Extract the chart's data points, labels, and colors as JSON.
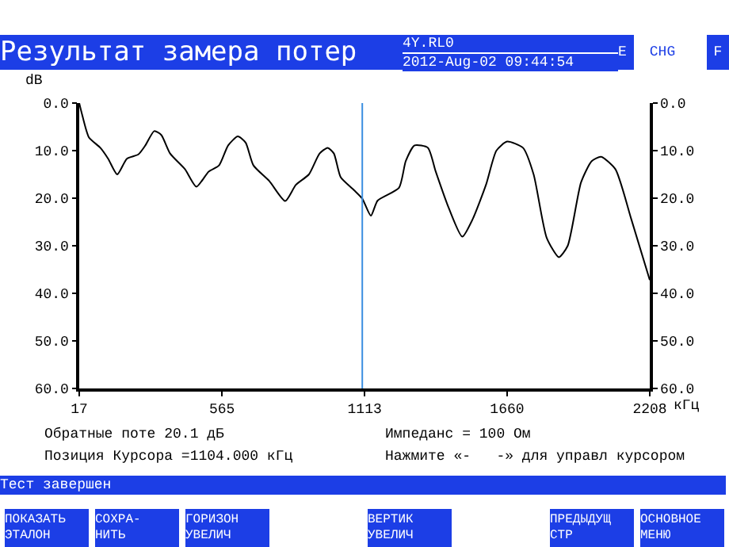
{
  "chart_data": {
    "type": "line",
    "title": "Результат замера потер",
    "xlabel": "кГц",
    "ylabel": "dB",
    "x": [
      17,
      27,
      54,
      98,
      128,
      163,
      200,
      244,
      271,
      305,
      332,
      366,
      423,
      467,
      514,
      554,
      589,
      626,
      656,
      686,
      747,
      808,
      849,
      899,
      940,
      971,
      995,
      1021,
      1072,
      1104,
      1137,
      1163,
      1245,
      1271,
      1305,
      1356,
      1386,
      1437,
      1488,
      1528,
      1579,
      1619,
      1660,
      1721,
      1762,
      1812,
      1859,
      1893,
      1944,
      1985,
      2021,
      2076,
      2137,
      2208
    ],
    "series": [
      {
        "color": "#000000",
        "values": [
          0,
          2.2,
          7.2,
          9.4,
          11.7,
          15,
          11.7,
          10.8,
          8.9,
          5.9,
          6.7,
          10.6,
          13.9,
          17.6,
          14.4,
          13.1,
          8.9,
          7,
          8.3,
          13.1,
          16.4,
          20.6,
          17.2,
          15,
          10.6,
          9.4,
          10.6,
          15.6,
          18.3,
          20.1,
          23.7,
          20.5,
          17.8,
          12.2,
          8.9,
          9.4,
          14.4,
          22.2,
          28.1,
          24.4,
          17.2,
          10,
          8.1,
          9.4,
          15,
          28.3,
          32.4,
          30,
          16.7,
          12.2,
          11.3,
          13.9,
          24.4,
          37.2
        ]
      }
    ],
    "xlim": [
      17,
      2208
    ],
    "xticks": [
      17,
      565,
      1113,
      1660,
      2208
    ],
    "ylim": [
      60,
      0
    ],
    "yticks": [
      {
        "value": 0,
        "label": "0.0"
      },
      {
        "value": 10,
        "label": "10.0"
      },
      {
        "value": 20,
        "label": "20.0"
      },
      {
        "value": 30,
        "label": "30.0"
      },
      {
        "value": 40,
        "label": "40.0"
      },
      {
        "value": 50,
        "label": "50.0"
      },
      {
        "value": 60,
        "label": "60.0"
      }
    ],
    "y2lim": [
      60,
      0
    ],
    "y2ticks": [
      {
        "value": 0,
        "label": "0.0"
      },
      {
        "value": 10,
        "label": "10.0"
      },
      {
        "value": 20,
        "label": "20.0"
      },
      {
        "value": 30,
        "label": "30.0"
      },
      {
        "value": 40,
        "label": "40.0"
      },
      {
        "value": 50,
        "label": "50.0"
      },
      {
        "value": 60,
        "label": "60.0"
      }
    ],
    "ref_lines": [
      {
        "axis": "x",
        "value": 1104,
        "color": "#3a8ee0"
      }
    ],
    "annotations": [
      "4Y.RL0",
      "2012-Aug-02 09:44:54",
      "E",
      "CHG",
      "F",
      "Обратные поте 20.1 дБ",
      "Импеданс = 100 Ом",
      "Позиция Курсора =1104.000 кГц",
      "Нажмите «-   -» для управл курсором",
      "Тест завершен",
      "ПОКАЗАТЬ\nЭТАЛОН",
      "СОХРА-\nНИТЬ",
      "ГОРИЗОН\nУВЕЛИЧ",
      "ВЕРТИК\nУВЕЛИЧ",
      "ПРЕДЫДУЩ\nСТР",
      "ОСНОВНОЕ\nМЕНЮ"
    ]
  }
}
